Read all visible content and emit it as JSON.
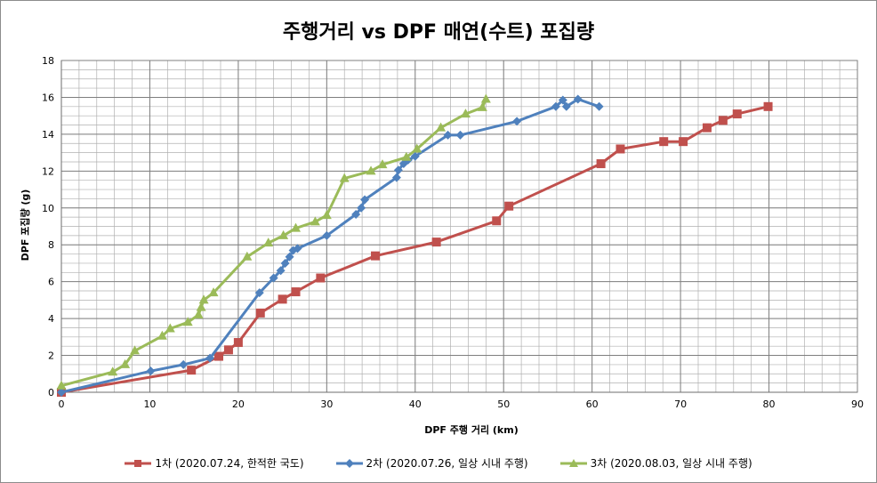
{
  "chart_data": {
    "type": "line",
    "title": "주행거리 vs DPF 매연(수트) 포집량",
    "xlabel": "DPF 주행 거리 (km)",
    "ylabel": "DPF 포집량 (g)",
    "xlim": [
      0,
      90
    ],
    "ylim": [
      0,
      18
    ],
    "x_ticks": [
      0,
      10,
      20,
      30,
      40,
      50,
      60,
      70,
      80,
      90
    ],
    "y_ticks": [
      0,
      2,
      4,
      6,
      8,
      10,
      12,
      14,
      16,
      18
    ],
    "grid": true,
    "legend_position": "bottom",
    "series": [
      {
        "name": "1차 (2020.07.24, 한적한 국도)",
        "color": "#c0504d",
        "marker": "square",
        "points": [
          [
            0,
            0
          ],
          [
            14.7,
            1.2
          ],
          [
            17.8,
            1.95
          ],
          [
            18.9,
            2.3
          ],
          [
            20,
            2.7
          ],
          [
            22.5,
            4.3
          ],
          [
            25,
            5.05
          ],
          [
            26.5,
            5.45
          ],
          [
            29.3,
            6.2
          ],
          [
            35.5,
            7.4
          ],
          [
            42.4,
            8.15
          ],
          [
            49.2,
            9.3
          ],
          [
            50.6,
            10.1
          ],
          [
            61,
            12.4
          ],
          [
            63.2,
            13.2
          ],
          [
            68.1,
            13.6
          ],
          [
            70.3,
            13.6
          ],
          [
            73,
            14.35
          ],
          [
            74.8,
            14.75
          ],
          [
            76.4,
            15.1
          ],
          [
            79.9,
            15.5
          ]
        ]
      },
      {
        "name": "2차 (2020.07.26, 일상 시내 주행)",
        "color": "#4f81bd",
        "marker": "diamond",
        "points": [
          [
            0,
            0
          ],
          [
            10.1,
            1.15
          ],
          [
            13.8,
            1.5
          ],
          [
            16.8,
            1.85
          ],
          [
            22.4,
            5.4
          ],
          [
            24,
            6.2
          ],
          [
            24.8,
            6.6
          ],
          [
            25.3,
            7
          ],
          [
            25.8,
            7.35
          ],
          [
            26.2,
            7.7
          ],
          [
            26.7,
            7.8
          ],
          [
            30,
            8.5
          ],
          [
            33.3,
            9.65
          ],
          [
            33.9,
            10
          ],
          [
            34.3,
            10.45
          ],
          [
            37.9,
            11.65
          ],
          [
            38.1,
            12.05
          ],
          [
            38.7,
            12.4
          ],
          [
            39.2,
            12.6
          ],
          [
            40,
            12.8
          ],
          [
            43.7,
            13.95
          ],
          [
            45.1,
            13.95
          ],
          [
            51.5,
            14.7
          ],
          [
            55.9,
            15.5
          ],
          [
            56.7,
            15.85
          ],
          [
            57.1,
            15.5
          ],
          [
            58.4,
            15.9
          ],
          [
            60.8,
            15.5
          ]
        ]
      },
      {
        "name": "3차 (2020.08.03, 일상 시내 주행)",
        "color": "#9bbb59",
        "marker": "triangle",
        "points": [
          [
            0,
            0.35
          ],
          [
            5.8,
            1.1
          ],
          [
            7.2,
            1.5
          ],
          [
            8.3,
            2.25
          ],
          [
            11.4,
            3.05
          ],
          [
            12.3,
            3.45
          ],
          [
            14.3,
            3.8
          ],
          [
            15.5,
            4.2
          ],
          [
            15.8,
            4.6
          ],
          [
            16.1,
            5
          ],
          [
            17.2,
            5.4
          ],
          [
            21,
            7.35
          ],
          [
            23.4,
            8.1
          ],
          [
            25.1,
            8.5
          ],
          [
            26.5,
            8.9
          ],
          [
            28.7,
            9.25
          ],
          [
            30,
            9.6
          ],
          [
            32,
            11.6
          ],
          [
            35,
            12
          ],
          [
            36.3,
            12.35
          ],
          [
            39,
            12.75
          ],
          [
            40.2,
            13.2
          ],
          [
            42.9,
            14.35
          ],
          [
            45.7,
            15.1
          ],
          [
            47.6,
            15.45
          ],
          [
            48,
            15.9
          ]
        ]
      }
    ]
  }
}
